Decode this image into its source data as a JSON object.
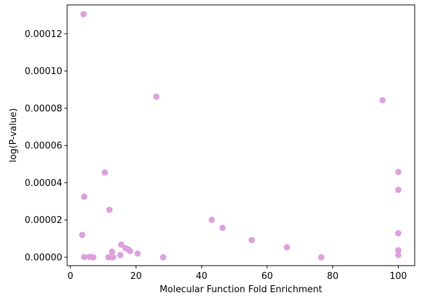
{
  "chart_data": {
    "type": "scatter",
    "title": "",
    "xlabel": "Molecular Function Fold Enrichment",
    "ylabel": "log(P-value)",
    "xlim": [
      -1,
      105
    ],
    "ylim": [
      -4.5e-06,
      0.0001355
    ],
    "grid": false,
    "legend": "none",
    "marker_color": "#dda0dd",
    "x_ticks": [
      {
        "value": 0,
        "label": "0"
      },
      {
        "value": 20,
        "label": "20"
      },
      {
        "value": 40,
        "label": "40"
      },
      {
        "value": 60,
        "label": "60"
      },
      {
        "value": 80,
        "label": "80"
      },
      {
        "value": 100,
        "label": "100"
      }
    ],
    "y_ticks": [
      {
        "value": 0,
        "label": "0.00000"
      },
      {
        "value": 2e-05,
        "label": "0.00002"
      },
      {
        "value": 4e-05,
        "label": "0.00004"
      },
      {
        "value": 6e-05,
        "label": "0.00006"
      },
      {
        "value": 8e-05,
        "label": "0.00008"
      },
      {
        "value": 0.0001,
        "label": "0.00010"
      },
      {
        "value": 0.00012,
        "label": "0.00012"
      }
    ],
    "points": [
      {
        "x": 4.0,
        "y": 0.0001305
      },
      {
        "x": 26.2,
        "y": 8.62e-05
      },
      {
        "x": 95.2,
        "y": 8.43e-05
      },
      {
        "x": 10.5,
        "y": 4.55e-05
      },
      {
        "x": 100.0,
        "y": 4.58e-05
      },
      {
        "x": 4.2,
        "y": 3.25e-05
      },
      {
        "x": 100.0,
        "y": 3.62e-05
      },
      {
        "x": 11.9,
        "y": 2.55e-05
      },
      {
        "x": 43.1,
        "y": 2.01e-05
      },
      {
        "x": 46.4,
        "y": 1.58e-05
      },
      {
        "x": 3.6,
        "y": 1.2e-05
      },
      {
        "x": 100.0,
        "y": 1.29e-05
      },
      {
        "x": 55.3,
        "y": 9.2e-06
      },
      {
        "x": 15.5,
        "y": 6.8e-06
      },
      {
        "x": 16.8,
        "y": 4.9e-06
      },
      {
        "x": 17.6,
        "y": 4.2e-06
      },
      {
        "x": 18.2,
        "y": 3.3e-06
      },
      {
        "x": 66.0,
        "y": 5.4e-06
      },
      {
        "x": 100.0,
        "y": 3.8e-06
      },
      {
        "x": 12.7,
        "y": 3e-06
      },
      {
        "x": 20.5,
        "y": 2e-06
      },
      {
        "x": 15.2,
        "y": 1.2e-06
      },
      {
        "x": 100.0,
        "y": 1.2e-06
      },
      {
        "x": 4.2,
        "y": 1e-07
      },
      {
        "x": 5.8,
        "y": 2e-07
      },
      {
        "x": 6.5,
        "y": 1e-07
      },
      {
        "x": 7.0,
        "y": 0.0
      },
      {
        "x": 11.6,
        "y": 0.0
      },
      {
        "x": 12.5,
        "y": 0.0
      },
      {
        "x": 13.0,
        "y": 0.0
      },
      {
        "x": 28.3,
        "y": 0.0
      },
      {
        "x": 76.5,
        "y": 0.0
      }
    ]
  }
}
